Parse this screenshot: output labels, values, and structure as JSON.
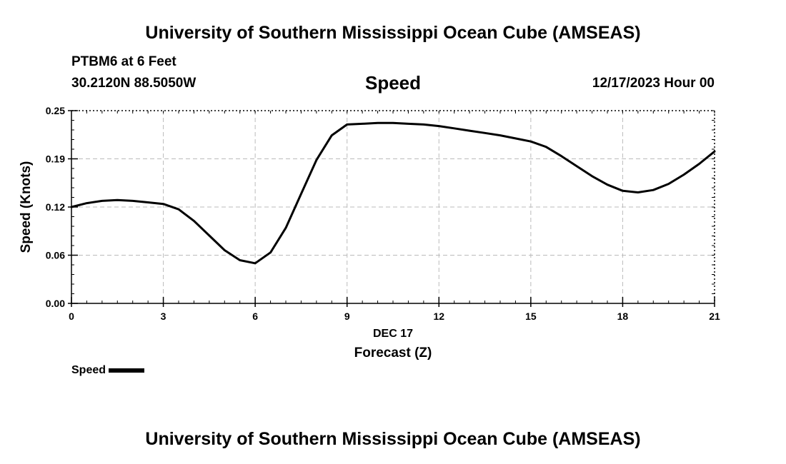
{
  "header": {
    "title": "University of Southern Mississippi Ocean Cube (AMSEAS)",
    "station": "PTBM6 at 6 Feet",
    "coords": "30.2120N  88.5050W",
    "datetime": "12/17/2023 Hour 00"
  },
  "footer": {
    "title": "University of Southern Mississippi Ocean Cube (AMSEAS)"
  },
  "chart_data": {
    "type": "line",
    "title": "Speed",
    "xlabel": "Forecast (Z)",
    "xsublabel": "DEC 17",
    "ylabel": "Speed (Knots)",
    "xlim": [
      0,
      21
    ],
    "ylim": [
      0,
      0.25
    ],
    "xticks": [
      "0",
      "3",
      "6",
      "9",
      "12",
      "15",
      "18",
      "21"
    ],
    "xtick_values": [
      0,
      3,
      6,
      9,
      12,
      15,
      18,
      21
    ],
    "yticks": [
      "0.00",
      "0.06",
      "0.12",
      "0.19",
      "0.25"
    ],
    "ytick_values": [
      0.0,
      0.0625,
      0.125,
      0.1875,
      0.25
    ],
    "grid": true,
    "legend": {
      "placement": "bottom-left"
    },
    "series": [
      {
        "name": "Speed",
        "color": "#000000",
        "x": [
          0,
          0.5,
          1,
          1.5,
          2,
          2.5,
          3,
          3.5,
          4,
          4.5,
          5,
          5.5,
          6,
          6.5,
          7,
          7.5,
          8,
          8.5,
          9,
          9.5,
          10,
          10.5,
          11,
          11.5,
          12,
          12.5,
          13,
          13.5,
          14,
          14.5,
          15,
          15.5,
          16,
          16.5,
          17,
          17.5,
          18,
          18.5,
          19,
          19.5,
          20,
          20.5,
          21
        ],
        "y": [
          0.125,
          0.13,
          0.133,
          0.134,
          0.133,
          0.131,
          0.129,
          0.122,
          0.107,
          0.088,
          0.069,
          0.056,
          0.052,
          0.066,
          0.098,
          0.142,
          0.186,
          0.218,
          0.232,
          0.233,
          0.234,
          0.234,
          0.233,
          0.232,
          0.23,
          0.227,
          0.224,
          0.221,
          0.218,
          0.214,
          0.21,
          0.203,
          0.191,
          0.178,
          0.165,
          0.154,
          0.146,
          0.144,
          0.147,
          0.155,
          0.167,
          0.181,
          0.197
        ]
      }
    ]
  }
}
